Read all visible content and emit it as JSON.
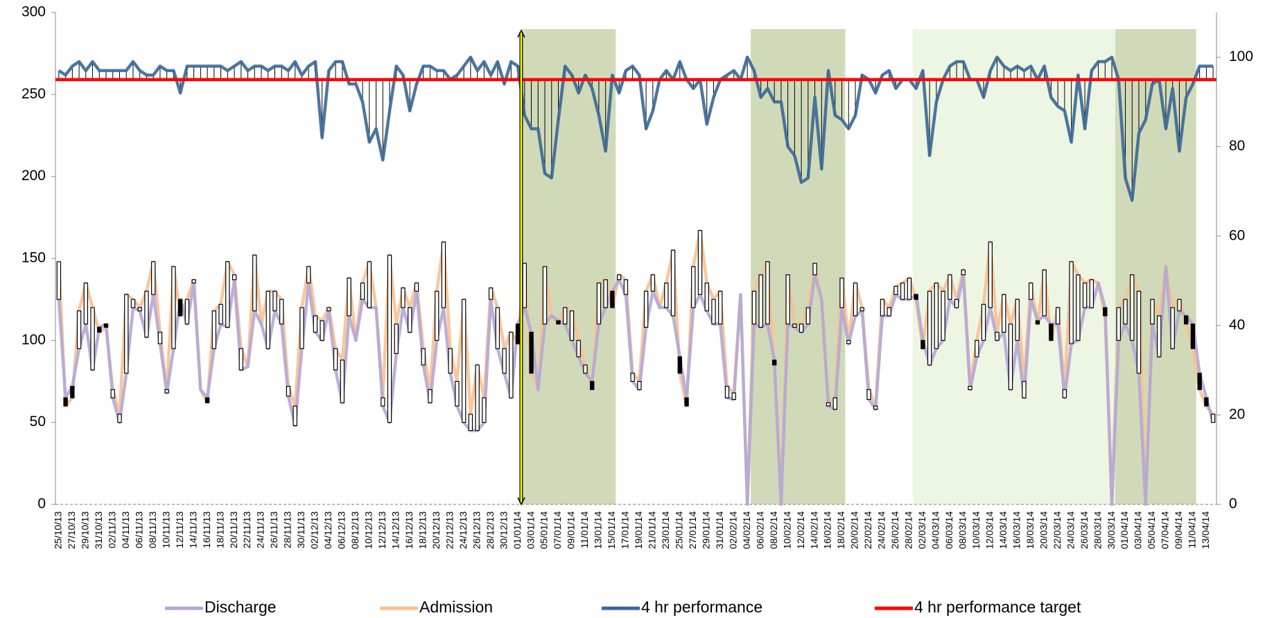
{
  "chart_data": {
    "type": "combo",
    "categories": [
      "25/10/13",
      null,
      "27/10/13",
      null,
      "29/10/13",
      null,
      "31/10/13",
      null,
      "02/11/13",
      null,
      "04/11/13",
      null,
      "06/11/13",
      null,
      "08/11/13",
      null,
      "10/11/13",
      null,
      "12/11/13",
      null,
      "14/11/13",
      null,
      "16/11/13",
      null,
      "18/11/13",
      null,
      "20/11/13",
      null,
      "22/11/13",
      null,
      "24/11/13",
      null,
      "26/11/13",
      null,
      "28/11/13",
      null,
      "30/11/13",
      null,
      "02/12/13",
      null,
      "04/12/13",
      null,
      "06/12/13",
      null,
      "08/12/13",
      null,
      "10/12/13",
      null,
      "12/12/13",
      null,
      "14/12/13",
      null,
      "16/12/13",
      null,
      "18/12/13",
      null,
      "20/12/13",
      null,
      "22/12/13",
      null,
      "24/12/13",
      null,
      "26/12/13",
      null,
      "28/12/13",
      null,
      "30/12/13",
      null,
      "01/01/14",
      null,
      "03/01/14",
      null,
      "05/01/14",
      null,
      "07/01/14",
      null,
      "09/01/14",
      null,
      "11/01/14",
      null,
      "13/01/14",
      null,
      "15/01/14",
      null,
      "17/01/14",
      null,
      "19/01/14",
      null,
      "21/01/14",
      null,
      "23/01/14",
      null,
      "25/01/14",
      null,
      "27/01/14",
      null,
      "29/01/14",
      null,
      "31/01/14",
      null,
      "02/02/14",
      null,
      "04/02/14",
      null,
      "06/02/14",
      null,
      "08/02/14",
      null,
      "10/02/14",
      null,
      "12/02/14",
      null,
      "14/02/14",
      null,
      "16/02/14",
      null,
      "18/02/14",
      null,
      "20/02/14",
      null,
      "22/02/14",
      null,
      "24/02/14",
      null,
      "26/02/14",
      null,
      "28/02/14",
      null,
      "02/03/14",
      null,
      "04/03/14",
      null,
      "06/03/14",
      null,
      "08/03/14",
      null,
      "10/03/14",
      null,
      "12/03/14",
      null,
      "14/03/14",
      null,
      "16/03/14",
      null,
      "18/03/14",
      null,
      "20/03/14",
      null,
      "22/03/14",
      null,
      "24/03/14",
      null,
      "26/03/14",
      null,
      "28/03/14",
      null,
      "30/03/14",
      null,
      "01/04/14",
      null,
      "03/04/14",
      null,
      "05/04/14",
      null,
      "07/04/14",
      null,
      "09/04/14",
      null,
      "11/04/14",
      null,
      "13/04/14",
      null
    ],
    "series": [
      {
        "name": "Discharge",
        "color": "#b4a7d6",
        "values": [
          125,
          65,
          72,
          95,
          110,
          82,
          108,
          110,
          65,
          50,
          80,
          120,
          118,
          102,
          128,
          98,
          68,
          95,
          125,
          110,
          135,
          70,
          65,
          95,
          110,
          108,
          137,
          82,
          84,
          118,
          110,
          95,
          118,
          110,
          66,
          48,
          95,
          135,
          105,
          100,
          118,
          82,
          62,
          115,
          100,
          125,
          120,
          120,
          60,
          50,
          92,
          120,
          105,
          130,
          85,
          62,
          100,
          120,
          80,
          60,
          50,
          45,
          45,
          50,
          125,
          95,
          80,
          65,
          110,
          120,
          105,
          70,
          110,
          115,
          112,
          110,
          100,
          90,
          80,
          75,
          110,
          120,
          130,
          137,
          128,
          75,
          70,
          108,
          130,
          120,
          120,
          115,
          90,
          65,
          120,
          128,
          118,
          110,
          110,
          65,
          64,
          128,
          0,
          110,
          108,
          110,
          88,
          0,
          110,
          108,
          105,
          110,
          140,
          125,
          60,
          58,
          120,
          98,
          115,
          118,
          64,
          58,
          115,
          115,
          128,
          125,
          125,
          128,
          100,
          85,
          95,
          100,
          125,
          120,
          140,
          70,
          90,
          100,
          120,
          100,
          105,
          70,
          100,
          65,
          125,
          112,
          115,
          110,
          110,
          65,
          98,
          100,
          120,
          120,
          135,
          120,
          0,
          100,
          110,
          100,
          80,
          0,
          110,
          90,
          145,
          95,
          118,
          115,
          110,
          80,
          65,
          50
        ]
      },
      {
        "name": "Admission",
        "color": "#fac090",
        "values": [
          148,
          60,
          65,
          118,
          135,
          120,
          105,
          108,
          70,
          55,
          128,
          125,
          120,
          130,
          148,
          105,
          70,
          145,
          115,
          125,
          137,
          70,
          62,
          118,
          122,
          148,
          140,
          95,
          84,
          152,
          110,
          130,
          130,
          125,
          72,
          60,
          120,
          145,
          115,
          112,
          120,
          95,
          88,
          138,
          100,
          135,
          148,
          120,
          65,
          152,
          110,
          132,
          120,
          135,
          95,
          70,
          130,
          160,
          95,
          75,
          125,
          55,
          85,
          65,
          132,
          120,
          95,
          105,
          98,
          147,
          80,
          70,
          145,
          115,
          110,
          120,
          118,
          100,
          85,
          70,
          135,
          137,
          120,
          140,
          137,
          80,
          75,
          130,
          140,
          120,
          135,
          155,
          80,
          60,
          145,
          167,
          135,
          125,
          130,
          72,
          68,
          128,
          0,
          130,
          140,
          148,
          85,
          0,
          140,
          110,
          110,
          120,
          147,
          125,
          62,
          65,
          138,
          100,
          135,
          120,
          70,
          60,
          125,
          120,
          133,
          135,
          138,
          125,
          95,
          130,
          135,
          130,
          140,
          125,
          143,
          72,
          100,
          122,
          160,
          105,
          128,
          110,
          125,
          75,
          135,
          110,
          143,
          100,
          120,
          70,
          148,
          140,
          135,
          137,
          135,
          115,
          0,
          120,
          125,
          140,
          130,
          0,
          125,
          115,
          145,
          120,
          125,
          110,
          95,
          70,
          60,
          55
        ]
      },
      {
        "name": "4 hr performance",
        "color": "#3a6795",
        "axis": "y2",
        "values": [
          97,
          96,
          98,
          99,
          97,
          99,
          97,
          97,
          97,
          97,
          97,
          99,
          97,
          96,
          96,
          98,
          97,
          97,
          92,
          98,
          98,
          98,
          98,
          98,
          98,
          97,
          98,
          99,
          97,
          98,
          98,
          97,
          98,
          98,
          97,
          99,
          96,
          98,
          99,
          82,
          97,
          99,
          99,
          94,
          94,
          90,
          81,
          84,
          77,
          88,
          98,
          96,
          88,
          94,
          98,
          98,
          97,
          97,
          95,
          96,
          98,
          100,
          97,
          99,
          96,
          99,
          94,
          99,
          98,
          87,
          84,
          84,
          74,
          73,
          86,
          98,
          96,
          92,
          96,
          93,
          87,
          79,
          96,
          92,
          97,
          98,
          96,
          84,
          88,
          95,
          97,
          95,
          99,
          95,
          93,
          95,
          85,
          91,
          95,
          96,
          97,
          95,
          100,
          97,
          91,
          93,
          90,
          90,
          80,
          78,
          72,
          73,
          91,
          75,
          97,
          87,
          86,
          84,
          87,
          96,
          95,
          92,
          96,
          97,
          93,
          95,
          95,
          93,
          97,
          78,
          90,
          95,
          98,
          99,
          99,
          95,
          95,
          91,
          97,
          100,
          98,
          97,
          98,
          97,
          98,
          95,
          98,
          91,
          89,
          88,
          81,
          96,
          84,
          97,
          99,
          99,
          100,
          95,
          73,
          68,
          83,
          86,
          94,
          95,
          84,
          93,
          79,
          91,
          94,
          98,
          98,
          98
        ]
      },
      {
        "name": "4 hr performance target",
        "color": "#ff0000",
        "axis": "y2",
        "value": 95
      }
    ],
    "ylim": [
      0,
      300
    ],
    "yticks": [
      0,
      50,
      100,
      150,
      200,
      250,
      300
    ],
    "y2lim": [
      0,
      110
    ],
    "y2ticks": [
      0,
      20,
      40,
      60,
      80,
      100
    ],
    "updown_bars": {
      "up_color": "#ffffff",
      "down_color": "#000000"
    },
    "shaded_periods": [
      {
        "from": "01/01/14",
        "to": "15/01/14",
        "color": "#d1dab8"
      },
      {
        "from": "04/02/14",
        "to": "18/02/14",
        "color": "#d1dab8"
      },
      {
        "from": "28/02/14",
        "to": "30/03/14",
        "color": "#edf6e3"
      },
      {
        "from": "30/03/14",
        "to": "11/04/14",
        "color": "#d1dab8"
      }
    ],
    "marker": {
      "at": "01/01/14",
      "color": "#ffff00"
    },
    "legend": "bottom"
  }
}
